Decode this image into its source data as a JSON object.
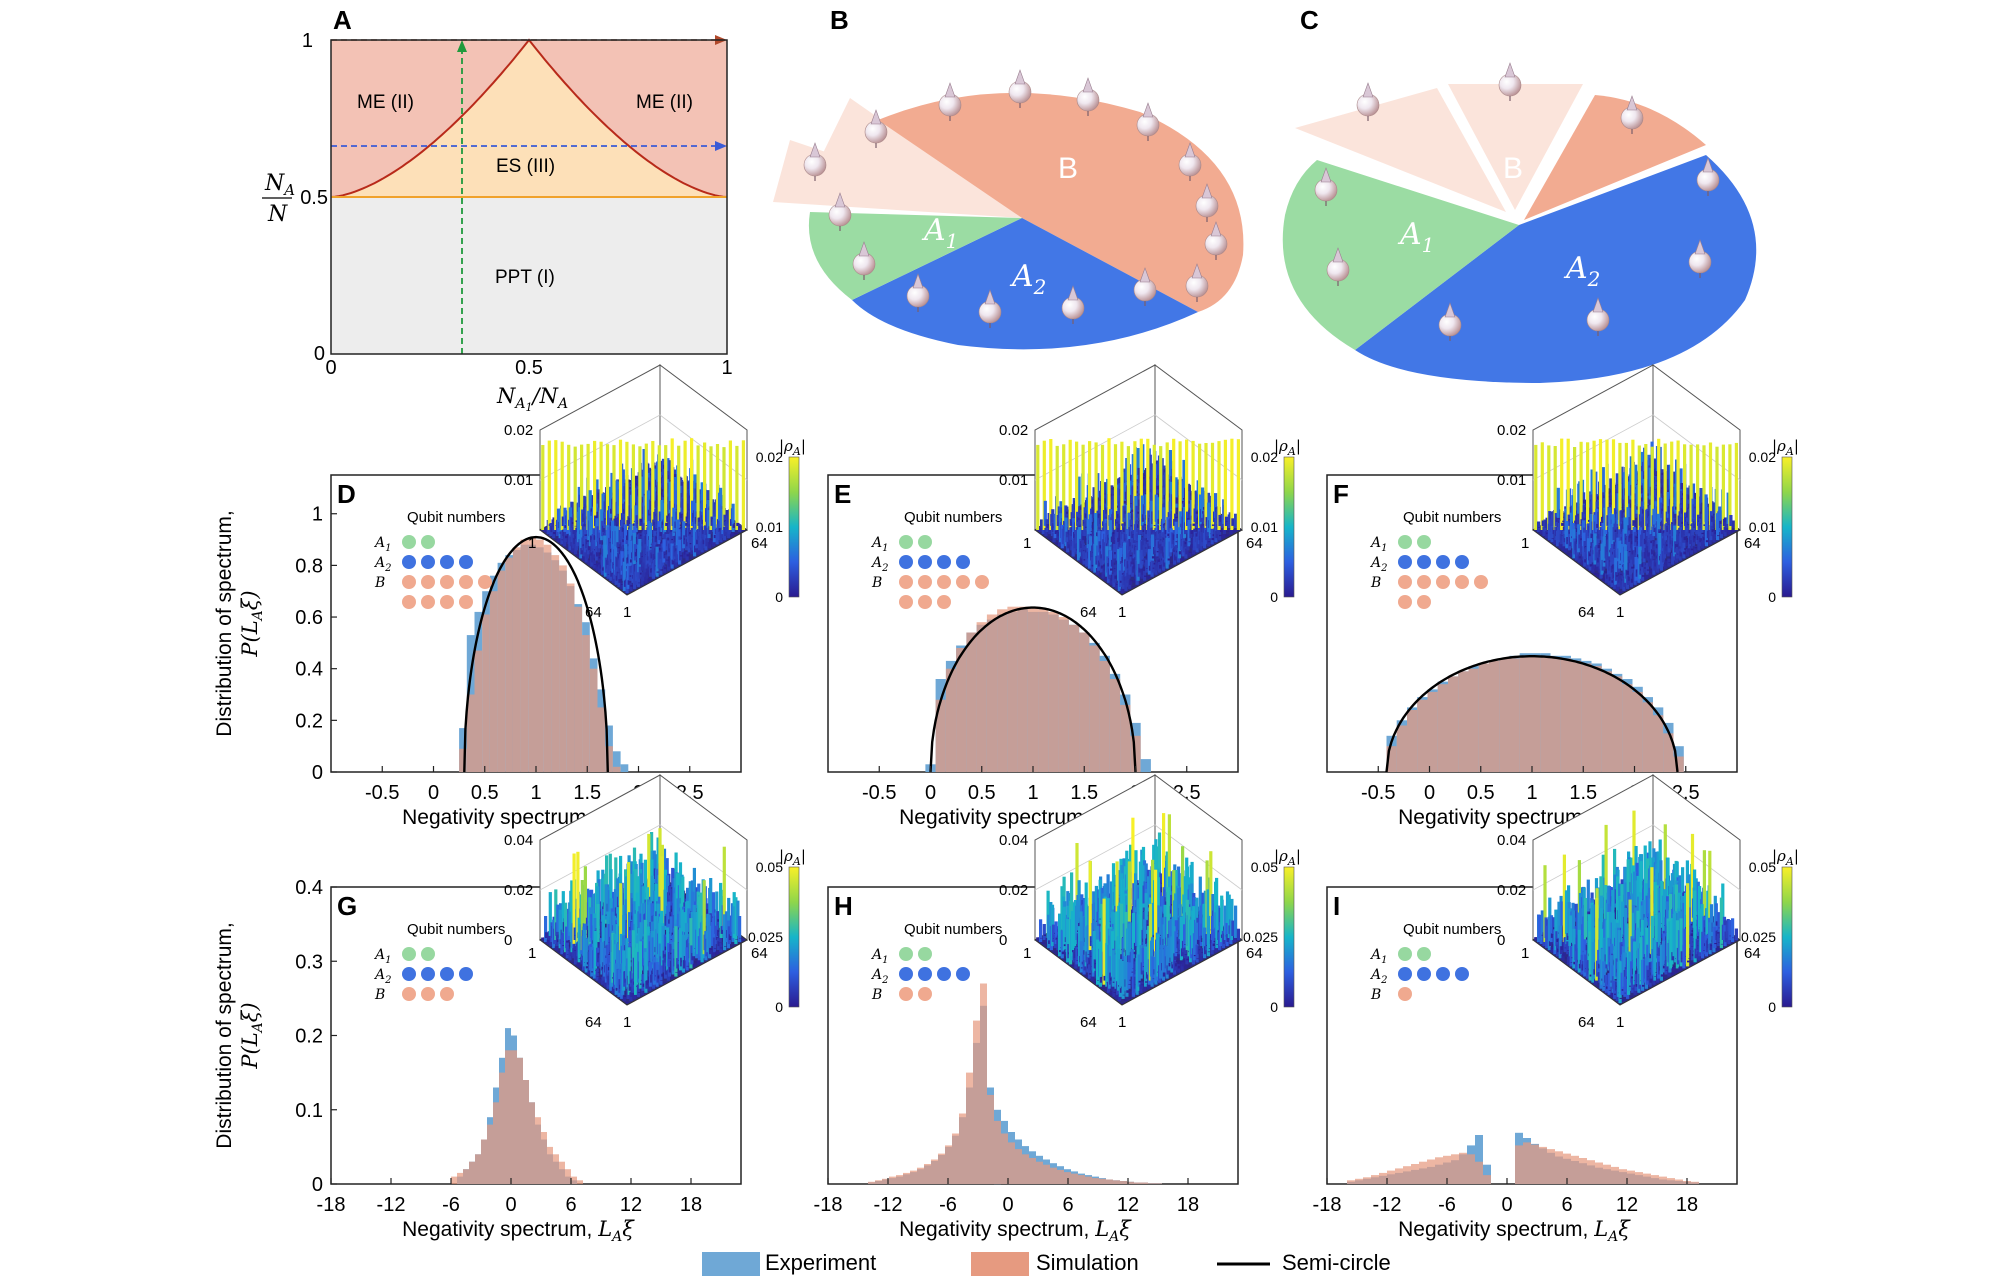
{
  "panels": {
    "A": {
      "letter": "A",
      "ylabel_num": "N",
      "ylabel_num_sub": "A",
      "ylabel_den": "N",
      "xlabel": "N",
      "xlabel_sub": "A",
      "xlabel_subsub": "1",
      "xlabel_tail": "/N",
      "xlabel_tail_sub": "A",
      "x_ticks": [
        "0",
        "0.5",
        "1"
      ],
      "y_ticks": [
        "0",
        "0.5",
        "1"
      ],
      "regions": {
        "me_left": "ME (II)",
        "me_right": "ME (II)",
        "es": "ES (III)",
        "ppt": "PPT (I)"
      },
      "colors": {
        "me": "#f3c2b5",
        "es": "#fde0b8",
        "ppt": "#ededed",
        "boundary": "#b82a1a",
        "half_line": "#f0a22c",
        "green_arrow": "#1f9a3c",
        "blue_arrow": "#3b5bd6",
        "top_arrow": "#b0482a"
      }
    },
    "B": {
      "letter": "B",
      "labels": {
        "A1": "A",
        "A1_sub": "1",
        "A2": "A",
        "A2_sub": "2",
        "B": "B"
      }
    },
    "C": {
      "letter": "C",
      "labels": {
        "A1": "A",
        "A1_sub": "1",
        "A2": "A",
        "A2_sub": "2",
        "B": "B"
      }
    }
  },
  "colors": {
    "experiment": "#6fa8d6",
    "simulation": "#e69a80",
    "overlap": "#a1857f",
    "semicircle": "#000000",
    "qubit_A1": "#97d8a0",
    "qubit_A2": "#3f72e0",
    "qubit_B": "#f0a98f",
    "pie_green": "#9bdca3",
    "pie_blue": "#4277e6",
    "pie_salmon": "#f2ab91",
    "pie_light": "#fbe2d8"
  },
  "common": {
    "ylabel_line1": "Distribution of spectrum,",
    "ylabel_line2": "P(L",
    "ylabel_line2_sub": "A",
    "ylabel_line2_tail": "ξ)",
    "xlabel_main": "Negativity spectrum, ",
    "xlabel_math": "L",
    "xlabel_math_sub": "A",
    "xlabel_math_tail": "ξ",
    "legend_title": "Qubit numbers",
    "inset_colorbar_label": "|ρ",
    "inset_colorbar_label_sub": "A",
    "inset_colorbar_label_tail": "|",
    "inset_axis_64": "64",
    "inset_axis_1": "1",
    "qubit_row_labels": [
      "A",
      "A",
      "B"
    ],
    "qubit_row_subs": [
      "1",
      "2",
      ""
    ]
  },
  "legend": {
    "experiment": "Experiment",
    "simulation": "Simulation",
    "semicircle": "Semi-circle"
  },
  "chart_data": [
    {
      "id": "D",
      "letter": "D",
      "type": "bar",
      "title": "",
      "xlabel": "Negativity spectrum, L_A ξ",
      "ylabel": "Distribution of spectrum, P(L_A ξ)",
      "xlim": [
        -1.0,
        3.0
      ],
      "ylim": [
        0,
        1.15
      ],
      "x_ticks": [
        -0.5,
        0,
        0.5,
        1,
        1.5,
        2,
        2.5
      ],
      "x_tick_labels": [
        "-0.5",
        "0",
        "0.5",
        "1",
        "1.5",
        "2",
        "2.5"
      ],
      "y_ticks": [
        0,
        0.2,
        0.4,
        0.6,
        0.8,
        1
      ],
      "y_tick_labels": [
        "0",
        "0.2",
        "0.4",
        "0.6",
        "0.8",
        "1"
      ],
      "qubits": {
        "A1": 2,
        "A2": 4,
        "B": 9
      },
      "semicircle": {
        "center": 1.0,
        "radius": 0.7
      },
      "bins": {
        "start": 0.25,
        "width": 0.075,
        "count": 22
      },
      "series": [
        {
          "name": "Experiment",
          "values": [
            0.17,
            0.53,
            0.62,
            0.7,
            0.76,
            0.81,
            0.84,
            0.86,
            0.88,
            0.88,
            0.87,
            0.85,
            0.82,
            0.78,
            0.72,
            0.65,
            0.58,
            0.44,
            0.32,
            0.18,
            0.08,
            0.03
          ]
        },
        {
          "name": "Simulation",
          "values": [
            0.09,
            0.3,
            0.47,
            0.61,
            0.7,
            0.78,
            0.83,
            0.87,
            0.9,
            0.91,
            0.9,
            0.88,
            0.84,
            0.8,
            0.73,
            0.64,
            0.53,
            0.4,
            0.25,
            0.1,
            0.02,
            0.0
          ]
        }
      ],
      "inset": {
        "z_ticks": [
          "0.01",
          "0.02"
        ],
        "colorbar_ticks": [
          "0",
          "0.01",
          "0.02"
        ],
        "pattern": "diagonal",
        "seed": 11
      }
    },
    {
      "id": "E",
      "letter": "E",
      "type": "bar",
      "title": "",
      "xlabel": "Negativity spectrum, L_A ξ",
      "ylabel": "",
      "xlim": [
        -1.0,
        3.0
      ],
      "ylim": [
        0,
        1.15
      ],
      "x_ticks": [
        -0.5,
        0,
        0.5,
        1,
        1.5,
        2,
        2.5
      ],
      "x_tick_labels": [
        "-0.5",
        "0",
        "0.5",
        "1",
        "1.5",
        "2",
        "2.5"
      ],
      "y_ticks": [],
      "y_tick_labels": [],
      "qubits": {
        "A1": 2,
        "A2": 4,
        "B": 8
      },
      "semicircle": {
        "center": 1.0,
        "radius": 1.0
      },
      "bins": {
        "start": -0.05,
        "width": 0.1,
        "count": 22
      },
      "series": [
        {
          "name": "Experiment",
          "values": [
            0.03,
            0.36,
            0.43,
            0.49,
            0.54,
            0.57,
            0.59,
            0.61,
            0.62,
            0.63,
            0.62,
            0.62,
            0.61,
            0.59,
            0.57,
            0.54,
            0.5,
            0.45,
            0.38,
            0.3,
            0.19,
            0.05
          ]
        },
        {
          "name": "Simulation",
          "values": [
            0.0,
            0.28,
            0.4,
            0.48,
            0.54,
            0.58,
            0.61,
            0.63,
            0.64,
            0.64,
            0.64,
            0.63,
            0.62,
            0.6,
            0.57,
            0.54,
            0.49,
            0.43,
            0.36,
            0.26,
            0.14,
            0.0
          ]
        }
      ],
      "inset": {
        "z_ticks": [
          "0.01",
          "0.02"
        ],
        "colorbar_ticks": [
          "0",
          "0.01",
          "0.02"
        ],
        "pattern": "diagonal",
        "seed": 23
      }
    },
    {
      "id": "F",
      "letter": "F",
      "type": "bar",
      "title": "",
      "xlabel": "Negativity spectrum, L_A ξ",
      "ylabel": "",
      "xlim": [
        -1.0,
        3.0
      ],
      "ylim": [
        0,
        1.15
      ],
      "x_ticks": [
        -0.5,
        0,
        0.5,
        1,
        1.5,
        2,
        2.5
      ],
      "x_tick_labels": [
        "-0.5",
        "0",
        "0.5",
        "1",
        "1.5",
        "2",
        "2.5"
      ],
      "y_ticks": [],
      "y_tick_labels": [],
      "qubits": {
        "A1": 2,
        "A2": 4,
        "B": 7
      },
      "semicircle": {
        "center": 1.0,
        "radius": 1.42
      },
      "bins": {
        "start": -0.42,
        "width": 0.1,
        "count": 29
      },
      "series": [
        {
          "name": "Experiment",
          "values": [
            0.14,
            0.2,
            0.25,
            0.29,
            0.32,
            0.35,
            0.37,
            0.39,
            0.41,
            0.42,
            0.43,
            0.44,
            0.45,
            0.46,
            0.46,
            0.46,
            0.45,
            0.45,
            0.44,
            0.43,
            0.42,
            0.4,
            0.38,
            0.36,
            0.33,
            0.29,
            0.25,
            0.19,
            0.1
          ]
        },
        {
          "name": "Simulation",
          "values": [
            0.1,
            0.18,
            0.24,
            0.28,
            0.31,
            0.34,
            0.37,
            0.39,
            0.4,
            0.42,
            0.43,
            0.44,
            0.44,
            0.45,
            0.45,
            0.45,
            0.44,
            0.44,
            0.43,
            0.42,
            0.41,
            0.39,
            0.37,
            0.34,
            0.31,
            0.27,
            0.22,
            0.15,
            0.06
          ]
        }
      ],
      "inset": {
        "z_ticks": [
          "0.01",
          "0.02"
        ],
        "colorbar_ticks": [
          "0",
          "0.01",
          "0.02"
        ],
        "pattern": "diagonal",
        "seed": 37
      }
    },
    {
      "id": "G",
      "letter": "G",
      "type": "bar",
      "title": "",
      "xlabel": "Negativity spectrum, L_A ξ",
      "ylabel": "Distribution of spectrum, P(L_A ξ)",
      "xlim": [
        -18,
        23
      ],
      "ylim": [
        0,
        0.4
      ],
      "x_ticks": [
        -18,
        -12,
        -6,
        0,
        6,
        12,
        18
      ],
      "x_tick_labels": [
        "-18",
        "-12",
        "-6",
        "0",
        "6",
        "12",
        "18"
      ],
      "y_ticks": [
        0,
        0.1,
        0.2,
        0.3,
        0.4
      ],
      "y_tick_labels": [
        "0",
        "0.1",
        "0.2",
        "0.3",
        "0.4"
      ],
      "qubits": {
        "A1": 2,
        "A2": 4,
        "B": 3
      },
      "bins": {
        "start": -6,
        "width": 0.6,
        "count": 22
      },
      "series": [
        {
          "name": "Experiment",
          "values": [
            0.0,
            0.01,
            0.02,
            0.03,
            0.04,
            0.06,
            0.09,
            0.13,
            0.17,
            0.21,
            0.2,
            0.17,
            0.14,
            0.11,
            0.08,
            0.06,
            0.04,
            0.03,
            0.02,
            0.01,
            0.005,
            0.0
          ]
        },
        {
          "name": "Simulation",
          "values": [
            0.01,
            0.015,
            0.02,
            0.03,
            0.04,
            0.06,
            0.08,
            0.11,
            0.15,
            0.18,
            0.18,
            0.17,
            0.14,
            0.11,
            0.09,
            0.07,
            0.05,
            0.04,
            0.03,
            0.02,
            0.01,
            0.005
          ]
        }
      ],
      "inset": {
        "z_ticks": [
          "0",
          "0.02",
          "0.04"
        ],
        "colorbar_ticks": [
          "0",
          "0.025",
          "0.05"
        ],
        "pattern": "random",
        "seed": 51
      }
    },
    {
      "id": "H",
      "letter": "H",
      "type": "bar",
      "title": "",
      "xlabel": "Negativity spectrum, L_A ξ",
      "ylabel": "",
      "xlim": [
        -18,
        23
      ],
      "ylim": [
        0,
        0.4
      ],
      "x_ticks": [
        -18,
        -12,
        -6,
        0,
        6,
        12,
        18
      ],
      "x_tick_labels": [
        "-18",
        "-12",
        "-6",
        "0",
        "6",
        "12",
        "18"
      ],
      "y_ticks": [],
      "y_tick_labels": [],
      "qubits": {
        "A1": 2,
        "A2": 4,
        "B": 2
      },
      "bins": {
        "start": -14,
        "width": 0.7,
        "count": 44
      },
      "series": [
        {
          "name": "Experiment",
          "values": [
            0.002,
            0.004,
            0.006,
            0.008,
            0.01,
            0.013,
            0.016,
            0.02,
            0.025,
            0.031,
            0.039,
            0.05,
            0.065,
            0.09,
            0.13,
            0.19,
            0.24,
            0.13,
            0.1,
            0.085,
            0.07,
            0.06,
            0.051,
            0.044,
            0.038,
            0.033,
            0.028,
            0.024,
            0.02,
            0.017,
            0.014,
            0.012,
            0.01,
            0.008,
            0.006,
            0.005,
            0.004,
            0.003,
            0.002,
            0.002,
            0.001,
            0.001,
            0.0,
            0.0
          ]
        },
        {
          "name": "Simulation",
          "values": [
            0.003,
            0.005,
            0.007,
            0.01,
            0.012,
            0.015,
            0.018,
            0.022,
            0.027,
            0.033,
            0.041,
            0.052,
            0.068,
            0.095,
            0.15,
            0.22,
            0.27,
            0.12,
            0.085,
            0.068,
            0.056,
            0.047,
            0.04,
            0.035,
            0.03,
            0.026,
            0.022,
            0.019,
            0.016,
            0.014,
            0.012,
            0.01,
            0.008,
            0.007,
            0.006,
            0.005,
            0.004,
            0.003,
            0.002,
            0.002,
            0.001,
            0.001,
            0.0,
            0.0
          ]
        }
      ],
      "inset": {
        "z_ticks": [
          "0",
          "0.02",
          "0.04"
        ],
        "colorbar_ticks": [
          "0",
          "0.025",
          "0.05"
        ],
        "pattern": "random",
        "seed": 67
      }
    },
    {
      "id": "I",
      "letter": "I",
      "type": "bar",
      "title": "",
      "xlabel": "Negativity spectrum, L_A ξ",
      "ylabel": "",
      "xlim": [
        -18,
        23
      ],
      "ylim": [
        0,
        0.4
      ],
      "x_ticks": [
        -18,
        -12,
        -6,
        0,
        6,
        12,
        18
      ],
      "x_tick_labels": [
        "-18",
        "-12",
        "-6",
        "0",
        "6",
        "12",
        "18"
      ],
      "y_ticks": [],
      "y_tick_labels": [],
      "qubits": {
        "A1": 2,
        "A2": 4,
        "B": 1
      },
      "bins": {
        "start": -16,
        "width": 0.8,
        "count": 44
      },
      "series": [
        {
          "name": "Experiment",
          "values": [
            0.003,
            0.005,
            0.007,
            0.009,
            0.011,
            0.013,
            0.015,
            0.017,
            0.019,
            0.021,
            0.023,
            0.026,
            0.029,
            0.032,
            0.04,
            0.052,
            0.066,
            0.026,
            0.0,
            0.0,
            0.0,
            0.069,
            0.062,
            0.054,
            0.048,
            0.042,
            0.037,
            0.034,
            0.031,
            0.028,
            0.025,
            0.022,
            0.02,
            0.018,
            0.016,
            0.014,
            0.012,
            0.01,
            0.008,
            0.006,
            0.005,
            0.004,
            0.003,
            0.002
          ]
        },
        {
          "name": "Simulation",
          "values": [
            0.005,
            0.007,
            0.009,
            0.012,
            0.015,
            0.018,
            0.021,
            0.024,
            0.027,
            0.03,
            0.033,
            0.036,
            0.038,
            0.04,
            0.042,
            0.04,
            0.03,
            0.012,
            0.0,
            0.0,
            0.0,
            0.052,
            0.056,
            0.053,
            0.05,
            0.047,
            0.044,
            0.041,
            0.038,
            0.035,
            0.032,
            0.029,
            0.026,
            0.023,
            0.02,
            0.018,
            0.016,
            0.014,
            0.012,
            0.01,
            0.008,
            0.006,
            0.004,
            0.003
          ]
        }
      ],
      "inset": {
        "z_ticks": [
          "0",
          "0.02",
          "0.04"
        ],
        "colorbar_ticks": [
          "0",
          "0.025",
          "0.05"
        ],
        "pattern": "random",
        "seed": 89
      }
    },
    {
      "id": "A",
      "type": "area",
      "title": "",
      "xlabel": "N_A1/N_A",
      "ylabel": "N_A/N",
      "xlim": [
        0,
        1
      ],
      "ylim": [
        0,
        1
      ],
      "x_ticks": [
        "0",
        "0.5",
        "1"
      ],
      "y_ticks": [
        "0",
        "0.5",
        "1"
      ],
      "boundary_peak": [
        0.5,
        1
      ],
      "boundary_start": [
        0,
        0.5
      ],
      "boundary_end": [
        1,
        0.5
      ],
      "green_arrow_x": 0.33,
      "blue_arrow_y": 0.66,
      "top_arrow_y": 1
    }
  ]
}
